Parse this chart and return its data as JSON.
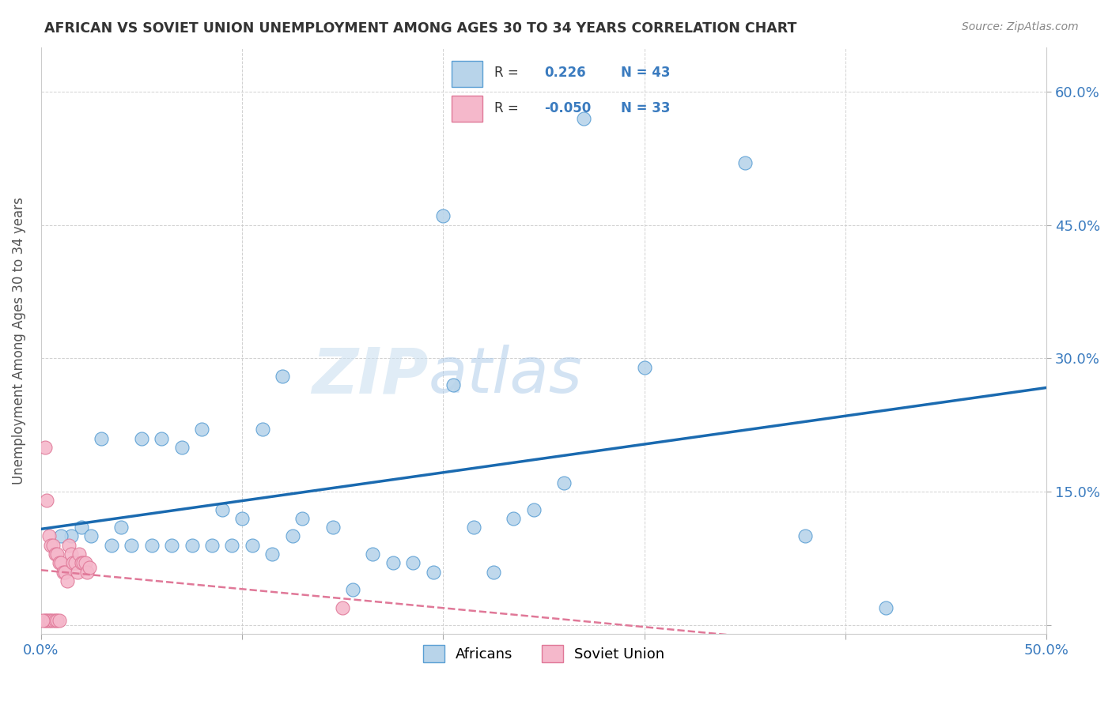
{
  "title": "AFRICAN VS SOVIET UNION UNEMPLOYMENT AMONG AGES 30 TO 34 YEARS CORRELATION CHART",
  "source": "Source: ZipAtlas.com",
  "ylabel": "Unemployment Among Ages 30 to 34 years",
  "xlim": [
    0.0,
    0.5
  ],
  "ylim": [
    -0.01,
    0.65
  ],
  "xticks": [
    0.0,
    0.1,
    0.2,
    0.3,
    0.4,
    0.5
  ],
  "yticks": [
    0.0,
    0.15,
    0.3,
    0.45,
    0.6
  ],
  "xticklabels": [
    "0.0%",
    "",
    "",
    "",
    "",
    "50.0%"
  ],
  "yticklabels_right": [
    "60.0%",
    "45.0%",
    "30.0%",
    "15.0%",
    ""
  ],
  "african_color": "#b8d4ea",
  "african_edge_color": "#5a9fd4",
  "soviet_color": "#f5b8cb",
  "soviet_edge_color": "#e07898",
  "trendline_african_color": "#1a6ab0",
  "trendline_soviet_color": "#e07898",
  "watermark_zip": "ZIP",
  "watermark_atlas": "atlas",
  "R_african": 0.226,
  "N_african": 43,
  "R_soviet": -0.05,
  "N_soviet": 33,
  "african_x": [
    0.27,
    0.35,
    0.2,
    0.12,
    0.08,
    0.05,
    0.03,
    0.06,
    0.07,
    0.09,
    0.1,
    0.11,
    0.13,
    0.04,
    0.02,
    0.015,
    0.01,
    0.025,
    0.035,
    0.045,
    0.055,
    0.065,
    0.075,
    0.085,
    0.095,
    0.105,
    0.115,
    0.125,
    0.145,
    0.155,
    0.165,
    0.175,
    0.185,
    0.195,
    0.205,
    0.215,
    0.225,
    0.235,
    0.245,
    0.26,
    0.3,
    0.38,
    0.42
  ],
  "african_y": [
    0.57,
    0.52,
    0.46,
    0.28,
    0.22,
    0.21,
    0.21,
    0.21,
    0.2,
    0.13,
    0.12,
    0.22,
    0.12,
    0.11,
    0.11,
    0.1,
    0.1,
    0.1,
    0.09,
    0.09,
    0.09,
    0.09,
    0.09,
    0.09,
    0.09,
    0.09,
    0.08,
    0.1,
    0.11,
    0.04,
    0.08,
    0.07,
    0.07,
    0.06,
    0.27,
    0.11,
    0.06,
    0.12,
    0.13,
    0.16,
    0.29,
    0.1,
    0.02
  ],
  "soviet_x": [
    0.002,
    0.003,
    0.004,
    0.005,
    0.006,
    0.007,
    0.008,
    0.009,
    0.01,
    0.011,
    0.012,
    0.013,
    0.014,
    0.015,
    0.016,
    0.017,
    0.018,
    0.019,
    0.02,
    0.021,
    0.022,
    0.023,
    0.024,
    0.002,
    0.003,
    0.004,
    0.005,
    0.006,
    0.007,
    0.008,
    0.009,
    0.001,
    0.15
  ],
  "soviet_y": [
    0.2,
    0.14,
    0.1,
    0.09,
    0.09,
    0.08,
    0.08,
    0.07,
    0.07,
    0.06,
    0.06,
    0.05,
    0.09,
    0.08,
    0.07,
    0.07,
    0.06,
    0.08,
    0.07,
    0.07,
    0.07,
    0.06,
    0.065,
    0.005,
    0.005,
    0.005,
    0.005,
    0.005,
    0.005,
    0.005,
    0.005,
    0.005,
    0.02
  ]
}
